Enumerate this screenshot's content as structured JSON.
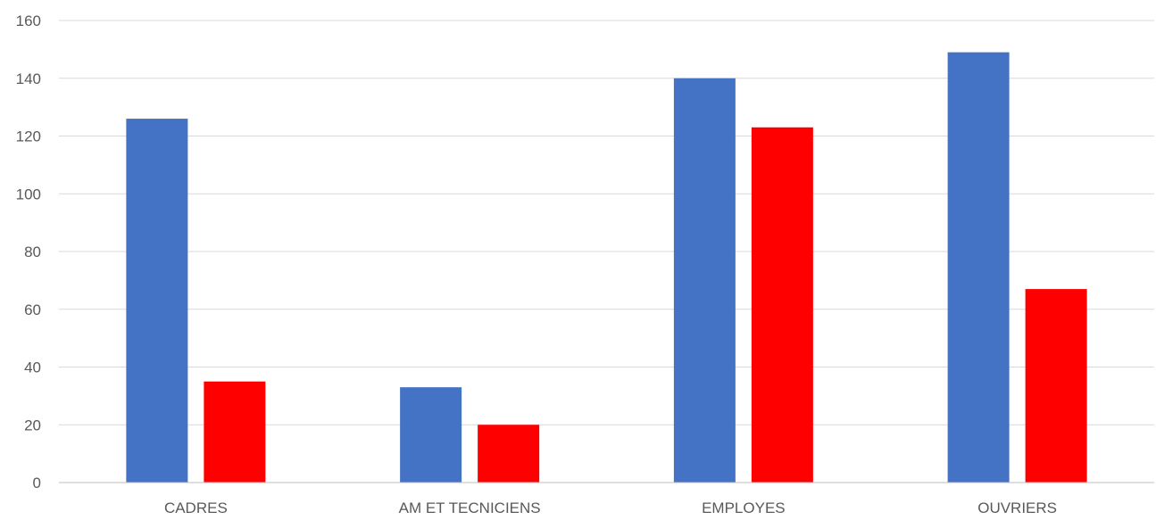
{
  "chart_data": {
    "type": "bar",
    "categories": [
      "CADRES",
      "AM ET TECNICIENS",
      "EMPLOYES",
      "OUVRIERS"
    ],
    "series": [
      {
        "color": "#4472C4",
        "values": [
          126,
          33,
          140,
          149
        ]
      },
      {
        "color": "#FF0000",
        "values": [
          35,
          20,
          123,
          67
        ]
      }
    ],
    "ylim": [
      0,
      160
    ],
    "yticks": [
      0,
      20,
      40,
      60,
      80,
      100,
      120,
      140,
      160
    ],
    "grid": true,
    "gridColor": "#D9D9D9",
    "axisColor": "#BFBFBF",
    "legend": false
  }
}
